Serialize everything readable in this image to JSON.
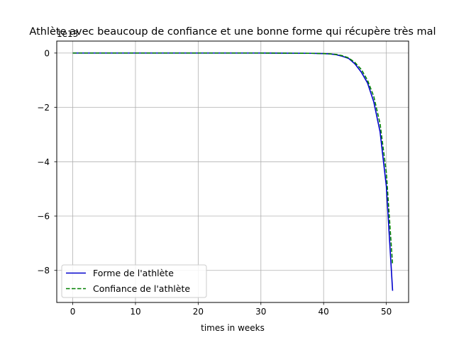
{
  "chart_data": {
    "type": "line",
    "title": "Athlète avec beaucoup de confiance et une bonne forme qui récupère très mal",
    "xlabel": "times in weeks",
    "ylabel": "",
    "y_offset_text": "1e13",
    "y_scale_note": "values in units of 1e13",
    "xlim": [
      -2.55,
      53.55
    ],
    "ylim": [
      -9.18,
      0.44
    ],
    "x_ticks": [
      0,
      10,
      20,
      30,
      40,
      50
    ],
    "x_tick_labels": [
      "0",
      "10",
      "20",
      "30",
      "40",
      "50"
    ],
    "y_ticks": [
      0,
      -2,
      -4,
      -6,
      -8
    ],
    "y_tick_labels": [
      "0",
      "−2",
      "−4",
      "−6",
      "−8"
    ],
    "grid": true,
    "legend_position": "lower-left",
    "series": [
      {
        "name": "Forme de l'athlète",
        "color": "#0000cc",
        "linestyle": "solid",
        "x": [
          0,
          10,
          20,
          30,
          38,
          40,
          41,
          42,
          43,
          44,
          45,
          46,
          47,
          48,
          49,
          50,
          51
        ],
        "y": [
          0,
          0,
          0,
          0,
          -0.01,
          -0.02,
          -0.03,
          -0.06,
          -0.12,
          -0.2,
          -0.4,
          -0.7,
          -1.1,
          -1.8,
          -2.9,
          -4.9,
          -8.75
        ]
      },
      {
        "name": "Confiance de l'athlète",
        "color": "#008000",
        "linestyle": "dashed",
        "x": [
          0,
          10,
          20,
          30,
          38,
          40,
          41,
          42,
          43,
          44,
          45,
          46,
          47,
          48,
          49,
          50,
          51
        ],
        "y": [
          0,
          0,
          0,
          0,
          -0.01,
          -0.02,
          -0.03,
          -0.05,
          -0.1,
          -0.18,
          -0.35,
          -0.6,
          -1.0,
          -1.6,
          -2.6,
          -4.4,
          -7.8
        ]
      }
    ]
  }
}
